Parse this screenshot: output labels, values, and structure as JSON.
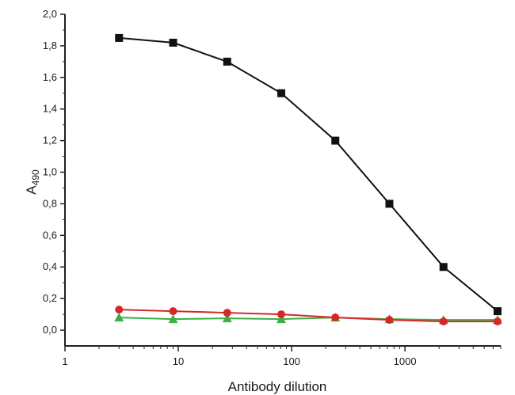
{
  "chart_data": {
    "type": "line",
    "title": "",
    "xlabel": "Antibody dilution",
    "ylabel_main": "A",
    "ylabel_sub": "490",
    "x_scale": "log",
    "xlim": [
      1,
      7000
    ],
    "ylim": [
      -0.1,
      2.0
    ],
    "x_ticks": [
      {
        "value": 1,
        "label": "1"
      },
      {
        "value": 10,
        "label": "10"
      },
      {
        "value": 100,
        "label": "100"
      },
      {
        "value": 1000,
        "label": "1000"
      }
    ],
    "y_ticks": [
      {
        "value": 0.0,
        "label": "0,0"
      },
      {
        "value": 0.2,
        "label": "0,2"
      },
      {
        "value": 0.4,
        "label": "0,4"
      },
      {
        "value": 0.6,
        "label": "0,6"
      },
      {
        "value": 0.8,
        "label": "0,8"
      },
      {
        "value": 1.0,
        "label": "1,0"
      },
      {
        "value": 1.2,
        "label": "1,2"
      },
      {
        "value": 1.4,
        "label": "1,4"
      },
      {
        "value": 1.6,
        "label": "1,6"
      },
      {
        "value": 1.8,
        "label": "1,8"
      },
      {
        "value": 2.0,
        "label": "2,0"
      }
    ],
    "grid": false,
    "legend": "none",
    "x": [
      3,
      9,
      27,
      81,
      243,
      729,
      2187,
      6561
    ],
    "series": [
      {
        "marker": "square",
        "color": "#111111",
        "values": [
          1.85,
          1.82,
          1.7,
          1.5,
          1.2,
          0.8,
          0.4,
          0.12
        ]
      },
      {
        "marker": "triangle",
        "color": "#3cb043",
        "values": [
          0.08,
          0.07,
          0.075,
          0.07,
          0.08,
          0.07,
          0.065,
          0.065
        ]
      },
      {
        "marker": "circle",
        "color": "#d62828",
        "values": [
          0.13,
          0.12,
          0.11,
          0.1,
          0.08,
          0.065,
          0.055,
          0.055
        ]
      }
    ]
  }
}
